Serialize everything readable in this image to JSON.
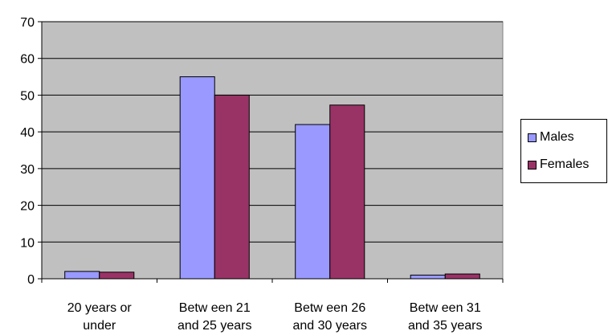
{
  "chart_data": {
    "type": "bar",
    "categories": [
      [
        "20 years or",
        "under"
      ],
      [
        "Betw een 21",
        "and 25 years"
      ],
      [
        "Betw een 26",
        "and 30 years"
      ],
      [
        "Betw een 31",
        "and 35 years"
      ]
    ],
    "series": [
      {
        "name": "Males",
        "color": "#9999ff",
        "values": [
          2,
          55,
          42,
          1
        ]
      },
      {
        "name": "Females",
        "color": "#993366",
        "values": [
          1.8,
          50,
          47.3,
          1.3
        ]
      }
    ],
    "ylim": [
      0,
      70
    ],
    "yticks": [
      0,
      10,
      20,
      30,
      40,
      50,
      60,
      70
    ],
    "grid": true,
    "plot_background": "#c0c0c0",
    "legend_position": "right",
    "title": "",
    "xlabel": "",
    "ylabel": ""
  }
}
